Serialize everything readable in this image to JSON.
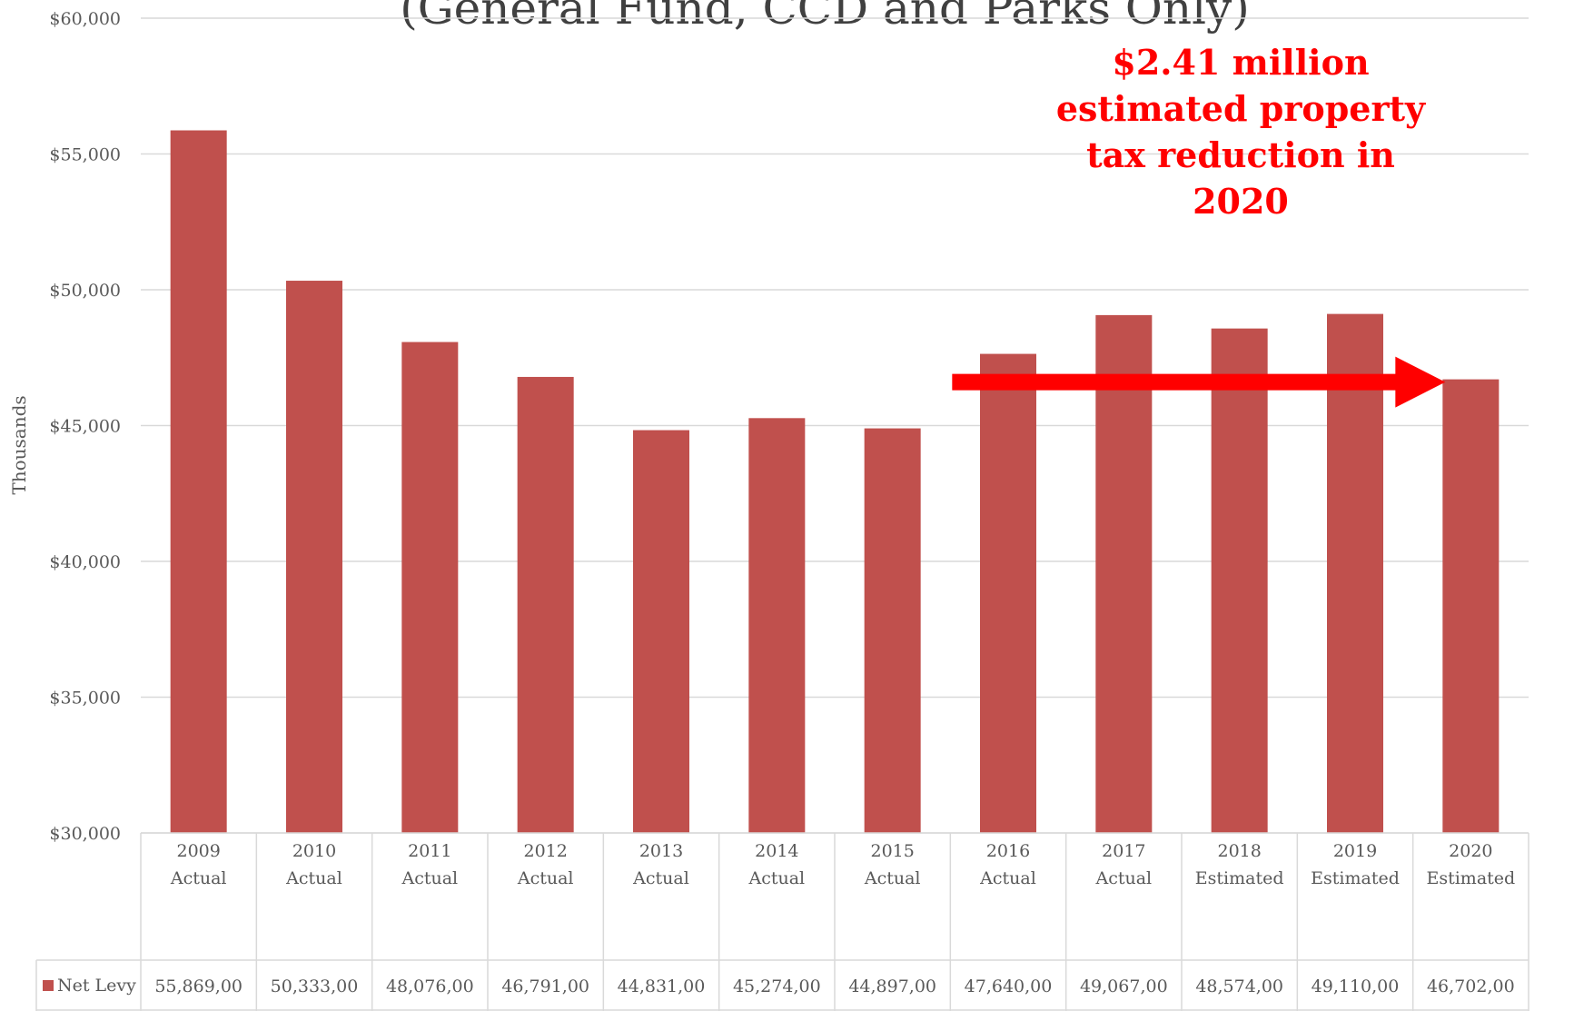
{
  "chart_data": {
    "type": "bar",
    "title": "(General Fund, CCD and Parks Only)",
    "ylabel": "Thousands",
    "ylim": [
      30000,
      60000
    ],
    "y_ticks": [
      "$30,000",
      "$35,000",
      "$40,000",
      "$45,000",
      "$50,000",
      "$55,000",
      "$60,000"
    ],
    "y_tick_values": [
      30000,
      35000,
      40000,
      45000,
      50000,
      55000,
      60000
    ],
    "grid": true,
    "categories": [
      [
        "2009",
        "Actual"
      ],
      [
        "2010",
        "Actual"
      ],
      [
        "2011",
        "Actual"
      ],
      [
        "2012",
        "Actual"
      ],
      [
        "2013",
        "Actual"
      ],
      [
        "2014",
        "Actual"
      ],
      [
        "2015",
        "Actual"
      ],
      [
        "2016",
        "Actual"
      ],
      [
        "2017",
        "Actual"
      ],
      [
        "2018",
        "Estimated"
      ],
      [
        "2019",
        "Estimated"
      ],
      [
        "2020",
        "Estimated"
      ]
    ],
    "series": [
      {
        "name": "Net Levy",
        "color": "#c0504d",
        "values": [
          55869,
          50333,
          48076,
          46791,
          44831,
          45274,
          44897,
          47640,
          49067,
          48574,
          49110,
          46702
        ],
        "table_values": [
          "55,869,00",
          "50,333,00",
          "48,076,00",
          "46,791,00",
          "44,831,00",
          "45,274,00",
          "44,897,00",
          "47,640,00",
          "49,067,00",
          "48,574,00",
          "49,110,00",
          "46,702,00"
        ]
      }
    ],
    "data_table": true,
    "annotation": {
      "lines": [
        "$2.41 million",
        "estimated property",
        "tax reduction in",
        "2020"
      ],
      "color": "#ff0000",
      "arrow": {
        "from_category_index": 7,
        "to_category_index": 11,
        "value": 46600
      }
    }
  }
}
